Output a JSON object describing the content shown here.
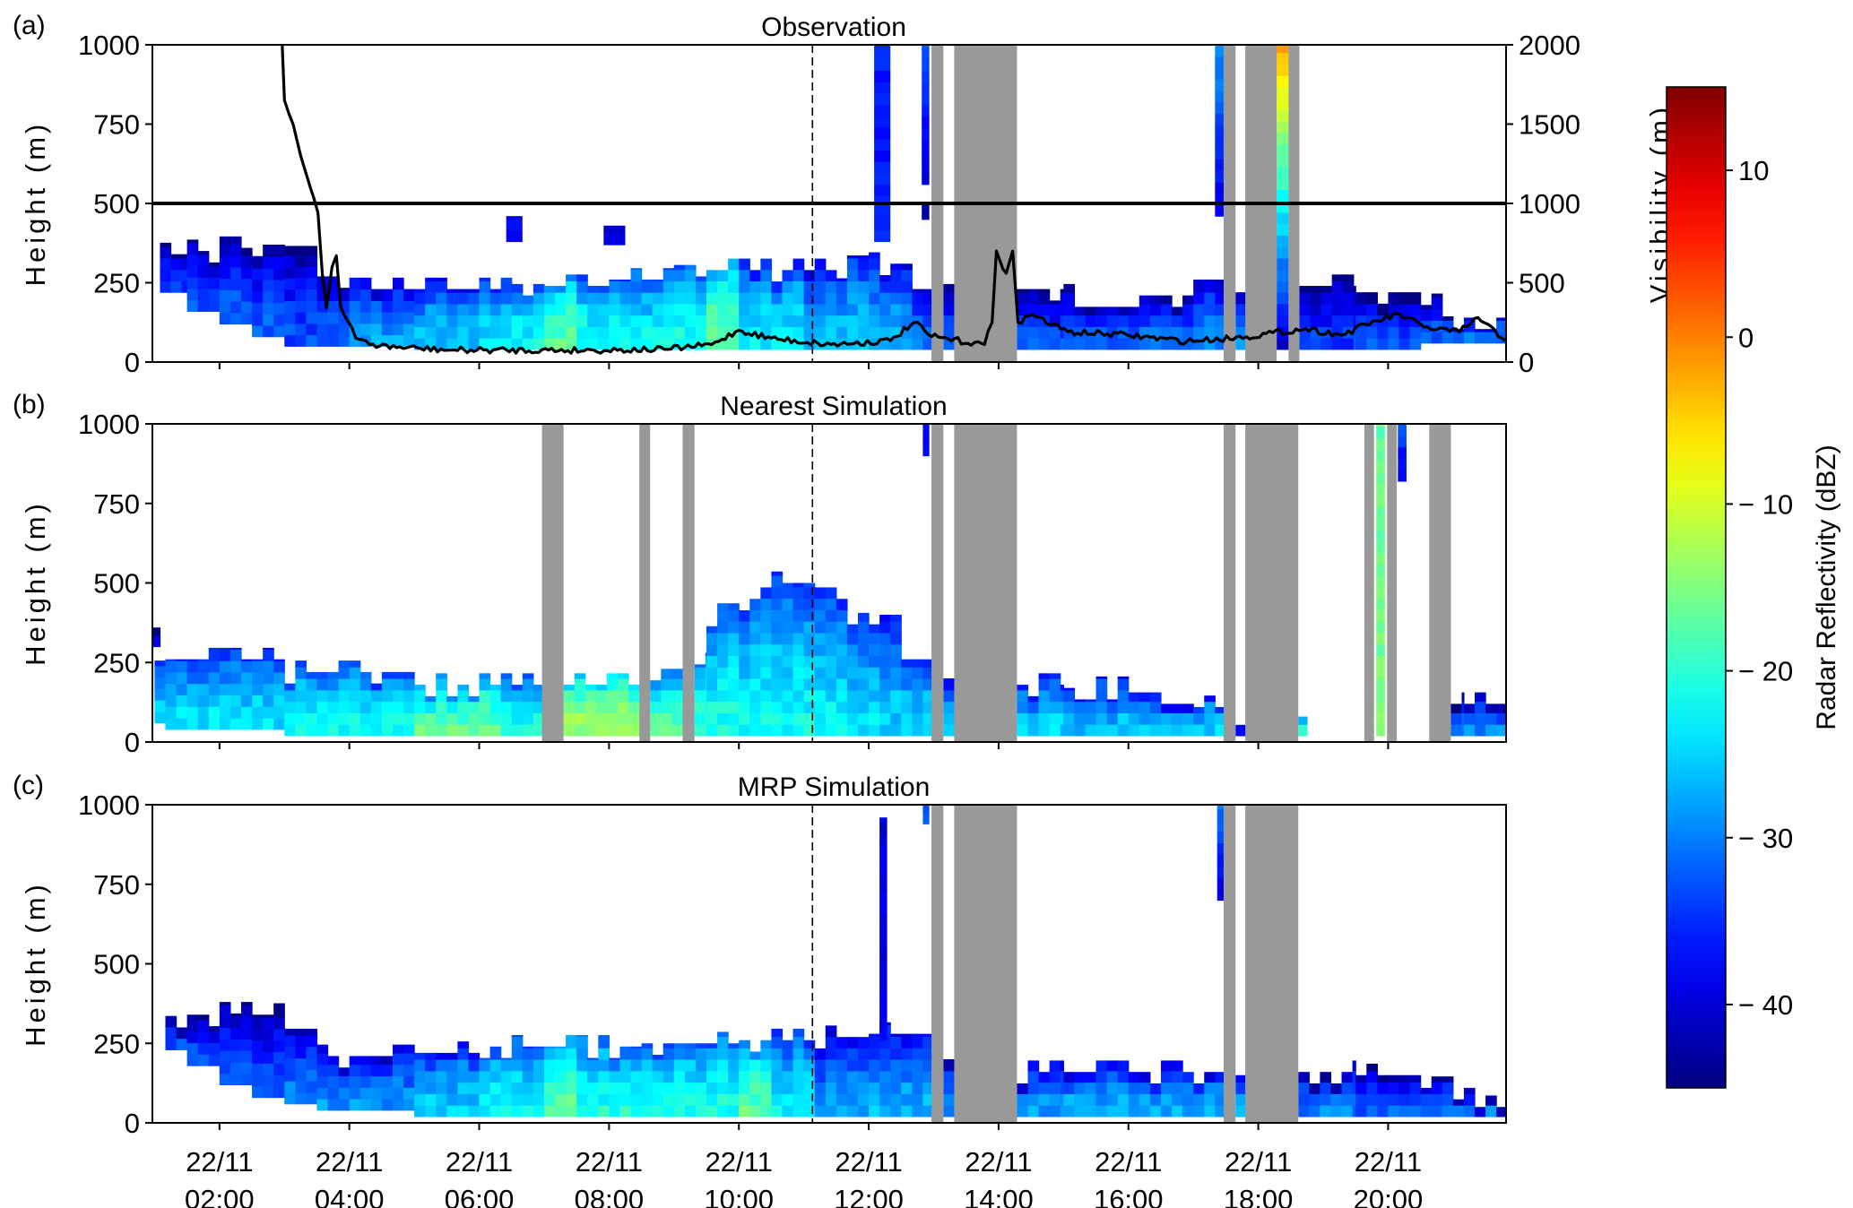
{
  "chart_data": [
    {
      "type": "heatmap",
      "panel_label": "(a)",
      "title": "Observation",
      "ylabel": "Height (m)",
      "ylim": [
        0,
        1000
      ],
      "yticks": [
        "0",
        "250",
        "500",
        "750",
        "1000"
      ],
      "secondary_ylabel": "Visibility (m)",
      "secondary_ylim": [
        0,
        2000
      ],
      "secondary_yticks": [
        "0",
        "500",
        "1000",
        "1500",
        "2000"
      ],
      "reference_line_visibility": 1000,
      "segments": [
        {
          "from": "01:05",
          "to": "01:30",
          "bottom": 220,
          "top": 340,
          "dbz": -34
        },
        {
          "from": "01:30",
          "to": "02:00",
          "bottom": 160,
          "top": 350,
          "dbz": -33
        },
        {
          "from": "02:00",
          "to": "02:30",
          "bottom": 120,
          "top": 360,
          "dbz": -32
        },
        {
          "from": "02:30",
          "to": "03:00",
          "bottom": 80,
          "top": 370,
          "dbz": -32
        },
        {
          "from": "03:00",
          "to": "03:30",
          "bottom": 50,
          "top": 330,
          "dbz": -33
        },
        {
          "from": "03:30",
          "to": "04:00",
          "bottom": 50,
          "top": 270,
          "dbz": -32
        },
        {
          "from": "04:00",
          "to": "05:00",
          "bottom": 50,
          "top": 230,
          "dbz": -28
        },
        {
          "from": "05:00",
          "to": "06:00",
          "bottom": 40,
          "top": 230,
          "dbz": -26
        },
        {
          "from": "06:00",
          "to": "06:30",
          "bottom": 40,
          "top": 230,
          "dbz": -24
        },
        {
          "from": "06:30",
          "to": "07:00",
          "bottom": 40,
          "top": 210,
          "dbz": -22
        },
        {
          "from": "07:00",
          "to": "07:30",
          "bottom": 40,
          "top": 240,
          "dbz": -17
        },
        {
          "from": "07:30",
          "to": "08:00",
          "bottom": 40,
          "top": 240,
          "dbz": -21
        },
        {
          "from": "08:00",
          "to": "09:00",
          "bottom": 40,
          "top": 260,
          "dbz": -22
        },
        {
          "from": "09:00",
          "to": "09:30",
          "bottom": 40,
          "top": 270,
          "dbz": -21
        },
        {
          "from": "09:30",
          "to": "10:00",
          "bottom": 40,
          "top": 290,
          "dbz": -16
        },
        {
          "from": "10:00",
          "to": "11:00",
          "bottom": 40,
          "top": 290,
          "dbz": -23
        },
        {
          "from": "11:00",
          "to": "11:30",
          "bottom": 40,
          "top": 290,
          "dbz": -26
        },
        {
          "from": "11:30",
          "to": "12:00",
          "bottom": 40,
          "top": 300,
          "dbz": -25
        },
        {
          "from": "12:00",
          "to": "12:40",
          "bottom": 40,
          "top": 310,
          "dbz": -27
        },
        {
          "from": "12:40",
          "to": "12:58",
          "bottom": 40,
          "top": 230,
          "dbz": -30
        },
        {
          "from": "13:09",
          "to": "13:19",
          "bottom": 40,
          "top": 210,
          "dbz": -33
        },
        {
          "from": "14:17",
          "to": "15:00",
          "bottom": 40,
          "top": 230,
          "dbz": -33
        },
        {
          "from": "15:00",
          "to": "16:00",
          "bottom": 40,
          "top": 210,
          "dbz": -31
        },
        {
          "from": "16:00",
          "to": "17:00",
          "bottom": 40,
          "top": 210,
          "dbz": -31
        },
        {
          "from": "17:00",
          "to": "17:28",
          "bottom": 40,
          "top": 260,
          "dbz": -29
        },
        {
          "from": "17:39",
          "to": "17:48",
          "bottom": 40,
          "top": 220,
          "dbz": -30
        },
        {
          "from": "18:38",
          "to": "19:30",
          "bottom": 40,
          "top": 240,
          "dbz": -34
        },
        {
          "from": "19:30",
          "to": "20:30",
          "bottom": 40,
          "top": 220,
          "dbz": -33
        },
        {
          "from": "20:30",
          "to": "21:00",
          "bottom": 60,
          "top": 180,
          "dbz": -32
        },
        {
          "from": "21:00",
          "to": "21:48",
          "bottom": 60,
          "top": 140,
          "dbz": -30
        }
      ],
      "plumes": [
        {
          "from": "12:05",
          "to": "12:20",
          "bottom": 380,
          "top": 1000,
          "dbz_bottom": -36,
          "dbz_top": -36
        },
        {
          "from": "12:49",
          "to": "12:56",
          "bottom": 560,
          "top": 1000,
          "dbz_bottom": -40,
          "dbz_top": -33
        },
        {
          "from": "12:49",
          "to": "12:56",
          "bottom": 450,
          "top": 500,
          "dbz_bottom": -42,
          "dbz_top": -42
        },
        {
          "from": "06:25",
          "to": "06:40",
          "bottom": 380,
          "top": 460,
          "dbz_bottom": -38,
          "dbz_top": -38
        },
        {
          "from": "07:55",
          "to": "08:15",
          "bottom": 370,
          "top": 430,
          "dbz_bottom": -40,
          "dbz_top": -40
        },
        {
          "from": "17:20",
          "to": "17:28",
          "bottom": 460,
          "top": 1000,
          "dbz_bottom": -38,
          "dbz_top": -28
        },
        {
          "from": "18:17",
          "to": "18:28",
          "bottom": 40,
          "top": 1000,
          "dbz_bottom": -40,
          "dbz_top": -2
        }
      ],
      "missing_data": [
        [
          "12:58",
          "13:09"
        ],
        [
          "13:19",
          "14:17"
        ],
        [
          "17:28",
          "17:39"
        ],
        [
          "17:48",
          "18:17"
        ],
        [
          "18:28",
          "18:38"
        ]
      ],
      "visibility_series": [
        [
          "02:58",
          2000
        ],
        [
          "03:00",
          1650
        ],
        [
          "03:08",
          1500
        ],
        [
          "03:15",
          1300
        ],
        [
          "03:24",
          1100
        ],
        [
          "03:31",
          940
        ],
        [
          "03:35",
          560
        ],
        [
          "03:39",
          340
        ],
        [
          "03:44",
          600
        ],
        [
          "03:48",
          670
        ],
        [
          "03:52",
          350
        ],
        [
          "03:55",
          300
        ],
        [
          "04:06",
          150
        ],
        [
          "04:28",
          100
        ],
        [
          "05:34",
          75
        ],
        [
          "07:46",
          75
        ],
        [
          "08:51",
          80
        ],
        [
          "09:35",
          110
        ],
        [
          "10:00",
          200
        ],
        [
          "10:30",
          150
        ],
        [
          "11:25",
          110
        ],
        [
          "12:20",
          135
        ],
        [
          "12:42",
          250
        ],
        [
          "12:58",
          160
        ],
        [
          "13:47",
          110
        ],
        [
          "13:54",
          250
        ],
        [
          "13:58",
          700
        ],
        [
          "14:07",
          560
        ],
        [
          "14:13",
          700
        ],
        [
          "14:18",
          250
        ],
        [
          "14:31",
          300
        ],
        [
          "15:04",
          190
        ],
        [
          "15:59",
          170
        ],
        [
          "16:54",
          130
        ],
        [
          "17:49",
          160
        ],
        [
          "18:44",
          210
        ],
        [
          "19:17",
          170
        ],
        [
          "19:49",
          260
        ],
        [
          "20:11",
          300
        ],
        [
          "20:33",
          220
        ],
        [
          "21:06",
          190
        ],
        [
          "21:23",
          280
        ],
        [
          "21:48",
          135
        ]
      ]
    },
    {
      "type": "heatmap",
      "panel_label": "(b)",
      "title": "Nearest Simulation",
      "ylabel": "Height (m)",
      "ylim": [
        0,
        1000
      ],
      "yticks": [
        "0",
        "250",
        "500",
        "750",
        "1000"
      ],
      "segments": [
        {
          "from": "00:58",
          "to": "01:05",
          "bottom": 300,
          "top": 360,
          "dbz": -40
        },
        {
          "from": "01:00",
          "to": "01:10",
          "bottom": 60,
          "top": 220,
          "dbz": -25
        },
        {
          "from": "01:10",
          "to": "03:00",
          "bottom": 40,
          "top": 260,
          "dbz": -24
        },
        {
          "from": "03:00",
          "to": "05:00",
          "bottom": 20,
          "top": 220,
          "dbz": -22
        },
        {
          "from": "05:00",
          "to": "06:20",
          "bottom": 20,
          "top": 180,
          "dbz": -17
        },
        {
          "from": "06:20",
          "to": "06:58",
          "bottom": 20,
          "top": 180,
          "dbz": -21
        },
        {
          "from": "07:18",
          "to": "08:28",
          "bottom": 20,
          "top": 180,
          "dbz": -13
        },
        {
          "from": "08:38",
          "to": "09:08",
          "bottom": 20,
          "top": 230,
          "dbz": -18
        },
        {
          "from": "09:19",
          "to": "09:30",
          "bottom": 20,
          "top": 280,
          "dbz": -20
        },
        {
          "from": "09:30",
          "to": "10:00",
          "bottom": 20,
          "top": 400,
          "dbz": -21
        },
        {
          "from": "10:00",
          "to": "10:30",
          "bottom": 20,
          "top": 450,
          "dbz": -22
        },
        {
          "from": "10:30",
          "to": "11:10",
          "bottom": 20,
          "top": 500,
          "dbz": -22
        },
        {
          "from": "11:10",
          "to": "11:40",
          "bottom": 20,
          "top": 450,
          "dbz": -23
        },
        {
          "from": "11:40",
          "to": "12:10",
          "bottom": 20,
          "top": 370,
          "dbz": -24
        },
        {
          "from": "12:10",
          "to": "12:30",
          "bottom": 20,
          "top": 400,
          "dbz": -25
        },
        {
          "from": "12:30",
          "to": "12:58",
          "bottom": 20,
          "top": 260,
          "dbz": -24
        },
        {
          "from": "13:09",
          "to": "13:19",
          "bottom": 20,
          "top": 200,
          "dbz": -25
        },
        {
          "from": "14:17",
          "to": "15:00",
          "bottom": 20,
          "top": 180,
          "dbz": -25
        },
        {
          "from": "15:00",
          "to": "16:00",
          "bottom": 20,
          "top": 170,
          "dbz": -26
        },
        {
          "from": "16:00",
          "to": "17:00",
          "bottom": 20,
          "top": 120,
          "dbz": -26
        },
        {
          "from": "17:00",
          "to": "17:28",
          "bottom": 20,
          "top": 110,
          "dbz": -25
        },
        {
          "from": "17:39",
          "to": "17:48",
          "bottom": 20,
          "top": 90,
          "dbz": -25
        },
        {
          "from": "18:37",
          "to": "18:45",
          "bottom": 20,
          "top": 80,
          "dbz": -18
        },
        {
          "from": "20:58",
          "to": "21:10",
          "bottom": 20,
          "top": 120,
          "dbz": -32
        },
        {
          "from": "21:10",
          "to": "21:48",
          "bottom": 20,
          "top": 120,
          "dbz": -30
        }
      ],
      "plumes": [
        {
          "from": "12:50",
          "to": "12:56",
          "bottom": 900,
          "top": 1000,
          "dbz_bottom": -38,
          "dbz_top": -38
        },
        {
          "from": "19:49",
          "to": "19:57",
          "bottom": 20,
          "top": 1000,
          "dbz_bottom": -15,
          "dbz_top": -17
        },
        {
          "from": "20:09",
          "to": "20:17",
          "bottom": 820,
          "top": 1000,
          "dbz_bottom": -38,
          "dbz_top": -32
        }
      ],
      "missing_data": [
        [
          "06:58",
          "07:18"
        ],
        [
          "08:28",
          "08:38"
        ],
        [
          "09:08",
          "09:19"
        ],
        [
          "12:58",
          "13:09"
        ],
        [
          "13:19",
          "14:17"
        ],
        [
          "17:28",
          "17:39"
        ],
        [
          "17:48",
          "18:37"
        ],
        [
          "19:38",
          "19:47"
        ],
        [
          "19:59",
          "20:08"
        ],
        [
          "20:38",
          "20:58"
        ]
      ]
    },
    {
      "type": "heatmap",
      "panel_label": "(c)",
      "title": "MRP  Simulation",
      "ylabel": "Height (m)",
      "ylim": [
        0,
        1000
      ],
      "yticks": [
        "0",
        "250",
        "500",
        "750",
        "1000"
      ],
      "segments": [
        {
          "from": "01:10",
          "to": "01:30",
          "bottom": 230,
          "top": 300,
          "dbz": -33
        },
        {
          "from": "01:30",
          "to": "02:00",
          "bottom": 180,
          "top": 340,
          "dbz": -33
        },
        {
          "from": "02:00",
          "to": "02:30",
          "bottom": 120,
          "top": 380,
          "dbz": -32
        },
        {
          "from": "02:30",
          "to": "03:00",
          "bottom": 80,
          "top": 340,
          "dbz": -33
        },
        {
          "from": "03:00",
          "to": "03:30",
          "bottom": 60,
          "top": 260,
          "dbz": -30
        },
        {
          "from": "03:30",
          "to": "05:00",
          "bottom": 40,
          "top": 210,
          "dbz": -29
        },
        {
          "from": "05:00",
          "to": "06:00",
          "bottom": 20,
          "top": 220,
          "dbz": -25
        },
        {
          "from": "06:00",
          "to": "07:00",
          "bottom": 20,
          "top": 240,
          "dbz": -22
        },
        {
          "from": "07:00",
          "to": "07:30",
          "bottom": 20,
          "top": 240,
          "dbz": -17
        },
        {
          "from": "07:30",
          "to": "08:30",
          "bottom": 20,
          "top": 240,
          "dbz": -21
        },
        {
          "from": "08:30",
          "to": "10:00",
          "bottom": 20,
          "top": 250,
          "dbz": -21
        },
        {
          "from": "10:00",
          "to": "10:30",
          "bottom": 20,
          "top": 260,
          "dbz": -17
        },
        {
          "from": "10:30",
          "to": "11:10",
          "bottom": 20,
          "top": 260,
          "dbz": -23
        },
        {
          "from": "11:10",
          "to": "12:00",
          "bottom": 20,
          "top": 270,
          "dbz": -28
        },
        {
          "from": "12:00",
          "to": "12:58",
          "bottom": 20,
          "top": 280,
          "dbz": -27
        },
        {
          "from": "13:09",
          "to": "13:19",
          "bottom": 20,
          "top": 200,
          "dbz": -30
        },
        {
          "from": "14:17",
          "to": "15:00",
          "bottom": 20,
          "top": 160,
          "dbz": -28
        },
        {
          "from": "15:00",
          "to": "17:28",
          "bottom": 20,
          "top": 160,
          "dbz": -27
        },
        {
          "from": "17:39",
          "to": "17:48",
          "bottom": 20,
          "top": 150,
          "dbz": -28
        },
        {
          "from": "18:37",
          "to": "19:30",
          "bottom": 20,
          "top": 160,
          "dbz": -30
        },
        {
          "from": "19:30",
          "to": "20:30",
          "bottom": 20,
          "top": 150,
          "dbz": -32
        },
        {
          "from": "20:30",
          "to": "21:20",
          "bottom": 20,
          "top": 110,
          "dbz": -32
        },
        {
          "from": "21:20",
          "to": "21:48",
          "bottom": 20,
          "top": 50,
          "dbz": -30
        }
      ],
      "plumes": [
        {
          "from": "12:10",
          "to": "12:17",
          "bottom": 260,
          "top": 960,
          "dbz_bottom": -38,
          "dbz_top": -40
        },
        {
          "from": "12:50",
          "to": "12:56",
          "bottom": 940,
          "top": 1000,
          "dbz_bottom": -32,
          "dbz_top": -32
        },
        {
          "from": "17:22",
          "to": "17:28",
          "bottom": 700,
          "top": 1000,
          "dbz_bottom": -40,
          "dbz_top": -30
        }
      ],
      "missing_data": [
        [
          "12:58",
          "13:09"
        ],
        [
          "13:19",
          "14:17"
        ],
        [
          "17:28",
          "17:39"
        ],
        [
          "17:48",
          "18:37"
        ]
      ]
    }
  ],
  "time_axis": {
    "xlim": [
      "00:58",
      "21:49"
    ],
    "ticks": [
      "02:00",
      "04:00",
      "06:00",
      "08:00",
      "10:00",
      "12:00",
      "14:00",
      "16:00",
      "18:00",
      "20:00"
    ],
    "tick_dates": [
      "22/11",
      "22/11",
      "22/11",
      "22/11",
      "22/11",
      "22/11",
      "22/11",
      "22/11",
      "22/11",
      "22/11"
    ],
    "tick_times": [
      "02:00",
      "04:00",
      "06:00",
      "08:00",
      "10:00",
      "12:00",
      "14:00",
      "16:00",
      "18:00",
      "20:00"
    ],
    "dashed_marker_time": "11:08"
  },
  "colorbar": {
    "label": "Radar Reflectivity (dBZ)",
    "range": [
      -45,
      15
    ],
    "colormap": "jet",
    "ticks": [
      10,
      0,
      -10,
      -20,
      -30,
      -40
    ],
    "tick_labels": [
      "10",
      "0",
      "− 10",
      "− 20",
      "− 30",
      "− 40"
    ]
  },
  "colors": {
    "missing_data": "#999999",
    "visibility_line": "#000000",
    "axes": "#000000"
  }
}
